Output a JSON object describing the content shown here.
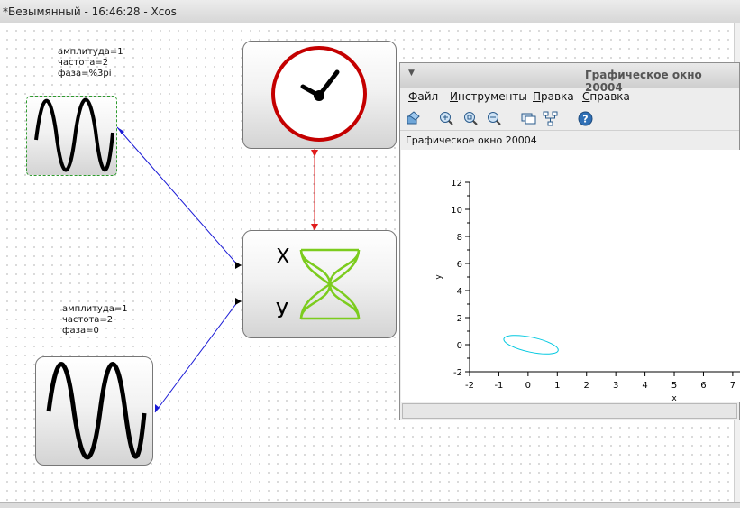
{
  "window": {
    "title": "*Безымянный - 16:46:28 - Xcos"
  },
  "blocks": {
    "sine1": {
      "params": "амплитуда=1\nчастота=2\nфаза=%3pi"
    },
    "sine2": {
      "params": "амплитуда=1\nчастота=2\nфаза=0"
    },
    "scope": {
      "x_label": "X",
      "y_label": "У",
      "curve_color": "#7ccc1e"
    },
    "clock": {
      "ring_color": "#c40000"
    }
  },
  "links": {
    "regular_color": "#1a1ad6",
    "event_color": "#e01c1c"
  },
  "graphic_window": {
    "title": "Графическое окно 20004",
    "menu": [
      "Файл",
      "Инструменты",
      "Правка",
      "Справка"
    ],
    "menu_underline": [
      "Ф",
      "И",
      "П",
      "С"
    ],
    "toolbar_icons": [
      "rotate-icon",
      "zoom-in-icon",
      "zoom-area-icon",
      "zoom-fit-icon",
      "datatip-icon",
      "tree-icon",
      "help-icon"
    ],
    "figure_label": "Графическое окно 20004",
    "chart_data": {
      "type": "line",
      "title": "",
      "xlabel": "x",
      "ylabel": "y",
      "xlim": [
        -2,
        7
      ],
      "ylim": [
        -2,
        12
      ],
      "xticks": [
        "-2",
        "-1",
        "0",
        "1",
        "2",
        "3",
        "4",
        "5",
        "6",
        "7"
      ],
      "yticks": [
        "-2",
        "0",
        "2",
        "4",
        "6",
        "8",
        "10",
        "12"
      ],
      "series": [
        {
          "color": "#00c8e0",
          "shape": "ellipse",
          "center": [
            0.1,
            0.0
          ],
          "x_semi_axis": 0.95,
          "y_semi_axis": 0.55,
          "rotation_deg": -12
        }
      ]
    }
  }
}
